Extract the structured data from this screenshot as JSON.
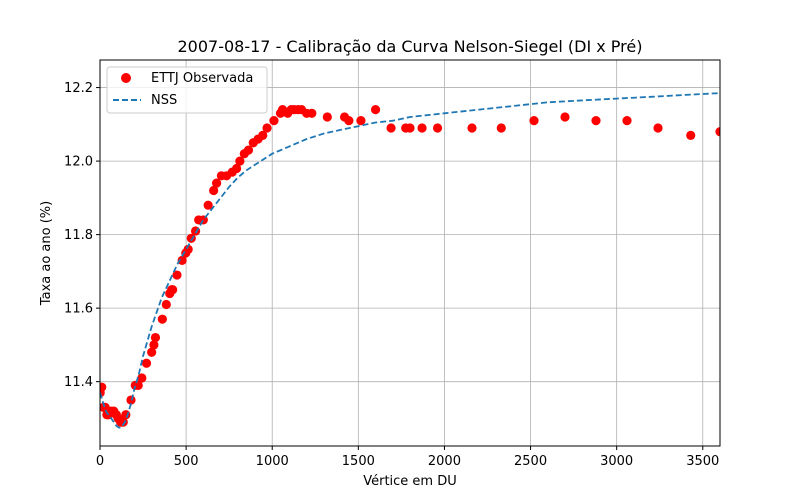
{
  "chart_data": {
    "type": "scatter",
    "title": "2007-08-17 - Calibração da Curva Nelson-Siegel (DI x Pré)",
    "xlabel": "Vértice em DU",
    "ylabel": "Taxa ao ano (%)",
    "xlim": [
      0,
      3600
    ],
    "ylim": [
      11.225,
      12.275
    ],
    "xticks": [
      0,
      500,
      1000,
      1500,
      2000,
      2500,
      3000,
      3500
    ],
    "yticks": [
      11.4,
      11.6,
      11.8,
      12.0,
      12.2
    ],
    "xtick_labels": [
      "0",
      "500",
      "1000",
      "1500",
      "2000",
      "2500",
      "3000",
      "3500"
    ],
    "ytick_labels": [
      "11.4",
      "11.6",
      "11.8",
      "12.0",
      "12.2"
    ],
    "grid": true,
    "legend_position": "top-left",
    "series": [
      {
        "name": "ETTJ Observada",
        "kind": "scatter",
        "color": "#ff0000",
        "x": [
          1,
          10,
          20,
          30,
          40,
          50,
          63,
          80,
          95,
          105,
          120,
          135,
          150,
          180,
          205,
          222,
          243,
          270,
          300,
          313,
          322,
          362,
          385,
          405,
          416,
          422,
          447,
          477,
          498,
          512,
          530,
          555,
          573,
          600,
          628,
          660,
          677,
          705,
          735,
          768,
          793,
          812,
          838,
          862,
          890,
          918,
          945,
          970,
          1010,
          1048,
          1060,
          1090,
          1110,
          1128,
          1150,
          1170,
          1200,
          1230,
          1320,
          1420,
          1445,
          1515,
          1600,
          1690,
          1775,
          1800,
          1870,
          1960,
          2160,
          2330,
          2520,
          2700,
          2880,
          3060,
          3240,
          3430,
          3600
        ],
        "y": [
          11.37,
          11.385,
          11.33,
          11.33,
          11.31,
          11.31,
          11.32,
          11.32,
          11.31,
          11.3,
          11.29,
          11.29,
          11.31,
          11.35,
          11.39,
          11.39,
          11.41,
          11.45,
          11.48,
          11.5,
          11.52,
          11.57,
          11.61,
          11.64,
          11.65,
          11.65,
          11.69,
          11.73,
          11.75,
          11.76,
          11.79,
          11.81,
          11.84,
          11.84,
          11.88,
          11.92,
          11.94,
          11.96,
          11.96,
          11.97,
          11.98,
          12.0,
          12.02,
          12.03,
          12.05,
          12.06,
          12.07,
          12.09,
          12.11,
          12.13,
          12.14,
          12.13,
          12.14,
          12.14,
          12.14,
          12.14,
          12.13,
          12.13,
          12.12,
          12.12,
          12.11,
          12.11,
          12.14,
          12.09,
          12.09,
          12.09,
          12.09,
          12.09,
          12.09,
          12.09,
          12.11,
          12.12,
          12.11,
          12.11,
          12.09,
          12.07,
          12.08
        ]
      },
      {
        "name": "NSS",
        "kind": "line",
        "style": "dashed",
        "color": "#1f77b4",
        "x": [
          0,
          10,
          20,
          30,
          40,
          50,
          65,
          80,
          95,
          110,
          120,
          130,
          145,
          160,
          180,
          200,
          225,
          250,
          275,
          300,
          330,
          360,
          400,
          450,
          500,
          550,
          600,
          650,
          700,
          750,
          800,
          850,
          900,
          950,
          1000,
          1100,
          1200,
          1300,
          1400,
          1500,
          1600,
          1700,
          1800,
          2000,
          2200,
          2400,
          2600,
          2800,
          3000,
          3200,
          3400,
          3600
        ],
        "y": [
          11.37,
          11.355,
          11.34,
          11.325,
          11.315,
          11.31,
          11.3,
          11.29,
          11.28,
          11.275,
          11.275,
          11.28,
          11.29,
          11.31,
          11.34,
          11.38,
          11.42,
          11.47,
          11.51,
          11.55,
          11.59,
          11.63,
          11.67,
          11.72,
          11.76,
          11.8,
          11.84,
          11.87,
          11.9,
          11.93,
          11.955,
          11.975,
          11.99,
          12.005,
          12.02,
          12.04,
          12.06,
          12.075,
          12.085,
          12.095,
          12.105,
          12.11,
          12.12,
          12.13,
          12.14,
          12.15,
          12.16,
          12.165,
          12.17,
          12.175,
          12.18,
          12.185
        ]
      }
    ]
  }
}
